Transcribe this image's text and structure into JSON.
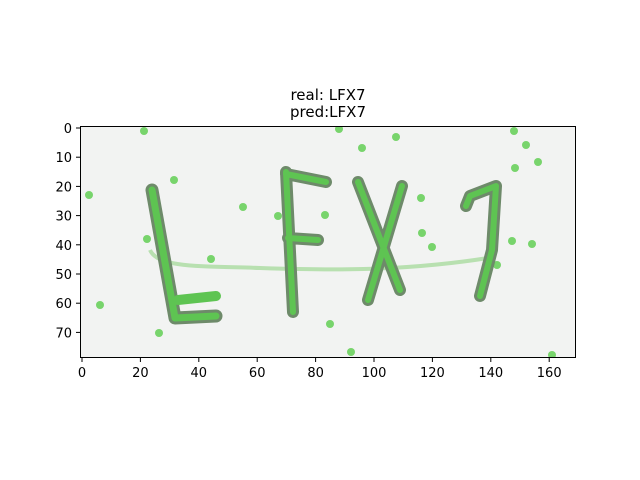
{
  "figure": {
    "title_lines": [
      "real: LFX7",
      "pred:LFX7"
    ]
  },
  "image_panel": {
    "description": "",
    "captcha_text": "LFX7",
    "colors": {
      "background": "#f2f3f2",
      "glyph_dark": "#6e8a6a",
      "glyph_green": "#5ec452",
      "noise_green": "#78d46c"
    }
  },
  "axes": {
    "x_ticks": [
      "0",
      "20",
      "40",
      "60",
      "80",
      "100",
      "120",
      "140",
      "160"
    ],
    "y_ticks": [
      "0",
      "10",
      "20",
      "30",
      "40",
      "50",
      "60",
      "70"
    ],
    "x_range": [
      0,
      170
    ],
    "y_range": [
      0,
      80
    ]
  }
}
